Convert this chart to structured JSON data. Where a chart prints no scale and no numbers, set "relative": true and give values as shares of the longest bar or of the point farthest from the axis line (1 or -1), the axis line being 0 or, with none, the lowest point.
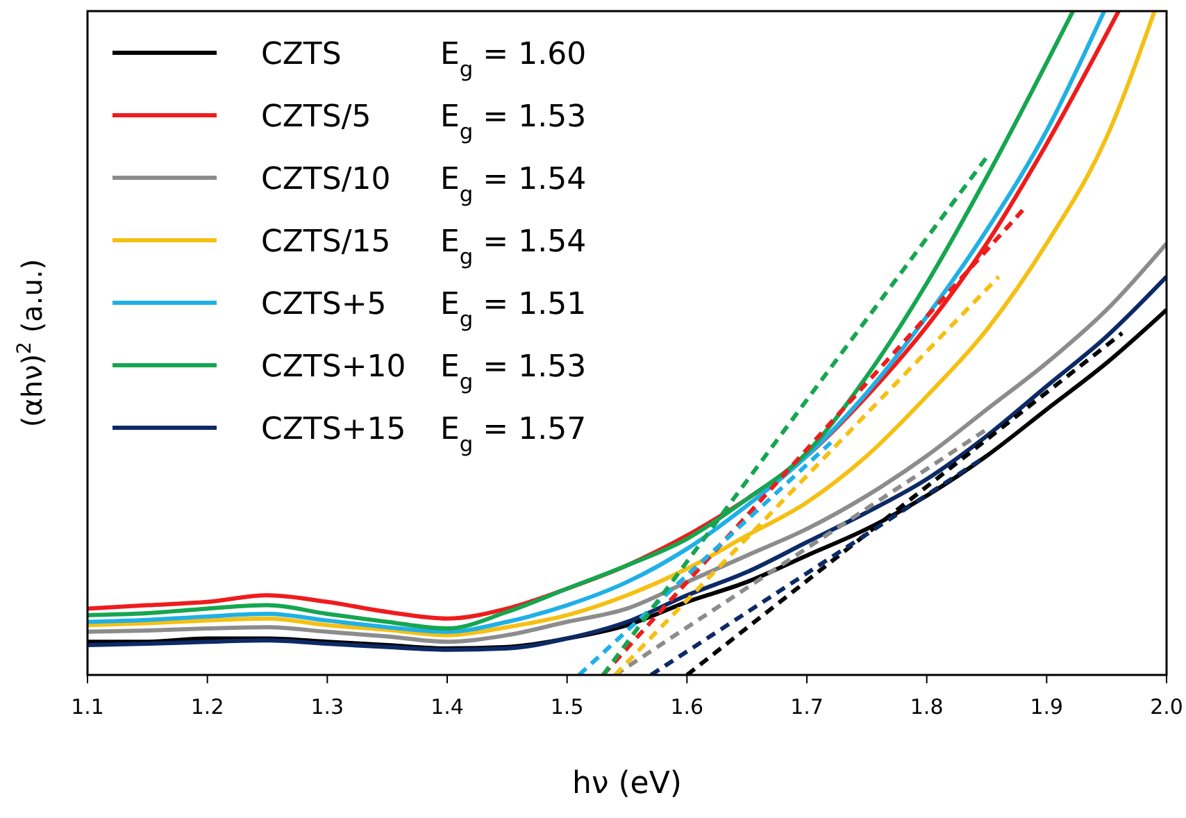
{
  "chart_data": {
    "type": "line",
    "relative": true,
    "xlabel": "hν (eV)",
    "ylabel": "(αhν)$^{2}$ (a.u.)",
    "xlim": [
      1.1,
      2.0
    ],
    "xticks": [
      1.1,
      1.2,
      1.3,
      1.4,
      1.5,
      1.6,
      1.7,
      1.8,
      1.9,
      {
        "value": 2.0,
        "label": "2.0"
      }
    ],
    "grid": false,
    "legend": "top left",
    "line_style": "solid",
    "annotations": [
      "E$_{g}$ = 1.60",
      "E$_{g}$ = 1.53",
      "E$_{g}$ = 1.54",
      "E$_{g}$ = 1.54",
      "E$_{g}$ = 1.51",
      "E$_{g}$ = 1.53",
      "E$_{g}$ = 1.57"
    ],
    "series": [
      {
        "name": "CZTS",
        "color": "#000000",
        "x": [
          1.1,
          1.15,
          1.2,
          1.25,
          1.3,
          1.35,
          1.4,
          1.45,
          1.5,
          1.55,
          1.6,
          1.65,
          1.7,
          1.75,
          1.8,
          1.85,
          1.9,
          1.95,
          2.0
        ],
        "values": [
          0.05,
          0.05,
          0.055,
          0.055,
          0.05,
          0.045,
          0.04,
          0.042,
          0.055,
          0.075,
          0.11,
          0.14,
          0.18,
          0.22,
          0.27,
          0.33,
          0.4,
          0.47,
          0.55
        ]
      },
      {
        "name": "CZTS/5",
        "color": "#ee1c1c",
        "x": [
          1.1,
          1.15,
          1.2,
          1.25,
          1.3,
          1.35,
          1.4,
          1.45,
          1.5,
          1.55,
          1.6,
          1.65,
          1.7,
          1.75,
          1.8,
          1.85,
          1.9,
          1.96
        ],
        "values": [
          0.1,
          0.105,
          0.11,
          0.12,
          0.11,
          0.095,
          0.085,
          0.1,
          0.13,
          0.165,
          0.21,
          0.265,
          0.33,
          0.42,
          0.525,
          0.65,
          0.8,
          1.0
        ]
      },
      {
        "name": "CZTS/10",
        "color": "#8c8c8c",
        "x": [
          1.1,
          1.15,
          1.2,
          1.25,
          1.3,
          1.35,
          1.4,
          1.45,
          1.5,
          1.55,
          1.6,
          1.65,
          1.7,
          1.75,
          1.8,
          1.85,
          1.9,
          1.95,
          2.0
        ],
        "values": [
          0.065,
          0.067,
          0.07,
          0.072,
          0.065,
          0.058,
          0.05,
          0.06,
          0.08,
          0.1,
          0.14,
          0.18,
          0.22,
          0.27,
          0.33,
          0.4,
          0.47,
          0.55,
          0.65
        ]
      },
      {
        "name": "CZTS/15",
        "color": "#f5c014",
        "x": [
          1.1,
          1.15,
          1.2,
          1.25,
          1.3,
          1.35,
          1.4,
          1.45,
          1.5,
          1.55,
          1.6,
          1.65,
          1.7,
          1.75,
          1.8,
          1.85,
          1.9,
          1.95,
          1.99
        ],
        "values": [
          0.075,
          0.078,
          0.082,
          0.085,
          0.075,
          0.068,
          0.06,
          0.072,
          0.09,
          0.12,
          0.16,
          0.21,
          0.26,
          0.33,
          0.42,
          0.52,
          0.65,
          0.81,
          1.0
        ]
      },
      {
        "name": "CZTS+5",
        "color": "#1fb0e6",
        "x": [
          1.1,
          1.15,
          1.2,
          1.25,
          1.3,
          1.35,
          1.4,
          1.45,
          1.5,
          1.55,
          1.6,
          1.65,
          1.7,
          1.75,
          1.8,
          1.85,
          1.9,
          1.948
        ],
        "values": [
          0.08,
          0.083,
          0.088,
          0.092,
          0.082,
          0.072,
          0.065,
          0.08,
          0.105,
          0.14,
          0.19,
          0.255,
          0.33,
          0.425,
          0.54,
          0.67,
          0.82,
          1.0
        ]
      },
      {
        "name": "CZTS+10",
        "color": "#15a650",
        "x": [
          1.1,
          1.15,
          1.2,
          1.25,
          1.3,
          1.35,
          1.4,
          1.45,
          1.5,
          1.55,
          1.6,
          1.65,
          1.7,
          1.75,
          1.8,
          1.85,
          1.922
        ],
        "values": [
          0.09,
          0.093,
          0.1,
          0.105,
          0.092,
          0.08,
          0.07,
          0.095,
          0.13,
          0.165,
          0.205,
          0.265,
          0.335,
          0.45,
          0.59,
          0.75,
          1.0
        ]
      },
      {
        "name": "CZTS+15",
        "color": "#0c2a66",
        "x": [
          1.1,
          1.15,
          1.2,
          1.25,
          1.3,
          1.35,
          1.4,
          1.45,
          1.5,
          1.55,
          1.6,
          1.65,
          1.7,
          1.75,
          1.8,
          1.85,
          1.9,
          1.95,
          2.0
        ],
        "values": [
          0.045,
          0.047,
          0.05,
          0.052,
          0.047,
          0.042,
          0.038,
          0.04,
          0.055,
          0.08,
          0.12,
          0.155,
          0.2,
          0.245,
          0.295,
          0.36,
          0.435,
          0.51,
          0.6
        ]
      },
      {
        "type": "line",
        "line_style": "dashed",
        "color": "#000000",
        "x": [
          1.6,
          1.963
        ],
        "values": [
          0,
          0.515
        ]
      },
      {
        "type": "line",
        "line_style": "dashed",
        "color": "#ee1c1c",
        "x": [
          1.53,
          1.88
        ],
        "values": [
          0,
          0.7
        ]
      },
      {
        "type": "line",
        "line_style": "dashed",
        "color": "#8c8c8c",
        "x": [
          1.54,
          1.85
        ],
        "values": [
          0,
          0.37
        ]
      },
      {
        "type": "line",
        "line_style": "dashed",
        "color": "#f5c014",
        "x": [
          1.54,
          1.86
        ],
        "values": [
          0,
          0.6
        ]
      },
      {
        "type": "line",
        "line_style": "dashed",
        "color": "#1fb0e6",
        "x": [
          1.51,
          1.72
        ],
        "values": [
          0,
          0.35
        ]
      },
      {
        "type": "line",
        "line_style": "dashed",
        "color": "#15a650",
        "x": [
          1.53,
          1.85
        ],
        "values": [
          0,
          0.78
        ]
      },
      {
        "type": "line",
        "line_style": "dashed",
        "color": "#0c2a66",
        "x": [
          1.57,
          1.85
        ],
        "values": [
          0,
          0.33
        ]
      }
    ]
  }
}
